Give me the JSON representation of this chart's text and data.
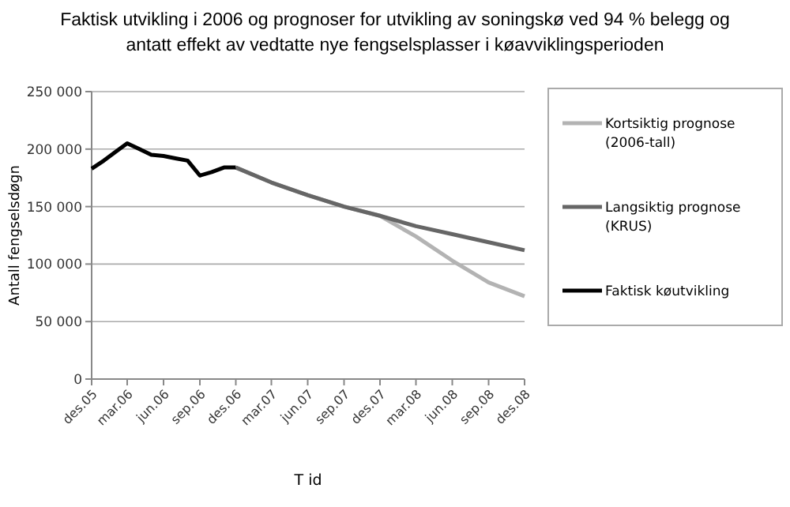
{
  "chart_data": {
    "type": "line",
    "title": "Faktisk utvikling i 2006 og prognoser for utvikling av soningskø ved 94 % belegg og antatt effekt av vedtatte nye fengselsplasser i køavviklingsperioden",
    "xlabel": "T id",
    "ylabel": "Antall fengselsdøgn",
    "xlim": [
      "2005-12",
      "2008-12"
    ],
    "xticks": [
      {
        "value": "2005-12",
        "label": "des.05"
      },
      {
        "value": "2006-03",
        "label": "mar.06"
      },
      {
        "value": "2006-06",
        "label": "jun.06"
      },
      {
        "value": "2006-09",
        "label": "sep.06"
      },
      {
        "value": "2006-12",
        "label": "des.06"
      },
      {
        "value": "2007-03",
        "label": "mar.07"
      },
      {
        "value": "2007-06",
        "label": "jun.07"
      },
      {
        "value": "2007-09",
        "label": "sep.07"
      },
      {
        "value": "2007-12",
        "label": "des.07"
      },
      {
        "value": "2008-03",
        "label": "mar.08"
      },
      {
        "value": "2008-06",
        "label": "jun.08"
      },
      {
        "value": "2008-09",
        "label": "sep.08"
      },
      {
        "value": "2008-12",
        "label": "des.08"
      }
    ],
    "ylim": [
      0,
      250000
    ],
    "yticks": [
      0,
      {
        "value": 50000,
        "label": "50 000"
      },
      {
        "value": 100000,
        "label": "100 000"
      },
      {
        "value": 150000,
        "label": "150 000"
      },
      {
        "value": 200000,
        "label": "200 000"
      },
      {
        "value": 250000,
        "label": "250 000"
      }
    ],
    "grid": "y",
    "legend": "right",
    "line_style": "solid",
    "series": [
      {
        "name": "Kortsiktig prognose (2006-tall)",
        "color": "#b3b3b3",
        "x": [
          "2006-12",
          "2007-03",
          "2007-06",
          "2007-09",
          "2007-12",
          "2008-03",
          "2008-06",
          "2008-09",
          "2008-12"
        ],
        "values": [
          184000,
          171000,
          160000,
          150000,
          142000,
          124000,
          103000,
          84000,
          72000
        ]
      },
      {
        "name": "Langsiktig prognose (KRUS)",
        "color": "#666666",
        "x": [
          "2006-12",
          "2007-03",
          "2007-06",
          "2007-09",
          "2007-12",
          "2008-03",
          "2008-06",
          "2008-09",
          "2008-12"
        ],
        "values": [
          184000,
          171000,
          160000,
          150000,
          142000,
          133000,
          126000,
          119000,
          112000
        ]
      },
      {
        "name": "Faktisk køutvikling",
        "color": "#000000",
        "x": [
          "2005-12",
          "2006-01",
          "2006-02",
          "2006-03",
          "2006-04",
          "2006-05",
          "2006-06",
          "2006-07",
          "2006-08",
          "2006-09",
          "2006-10",
          "2006-11",
          "2006-12"
        ],
        "values": [
          183000,
          190000,
          198000,
          205000,
          200000,
          195000,
          194000,
          192000,
          190000,
          177000,
          180000,
          184000,
          184000
        ]
      }
    ]
  }
}
